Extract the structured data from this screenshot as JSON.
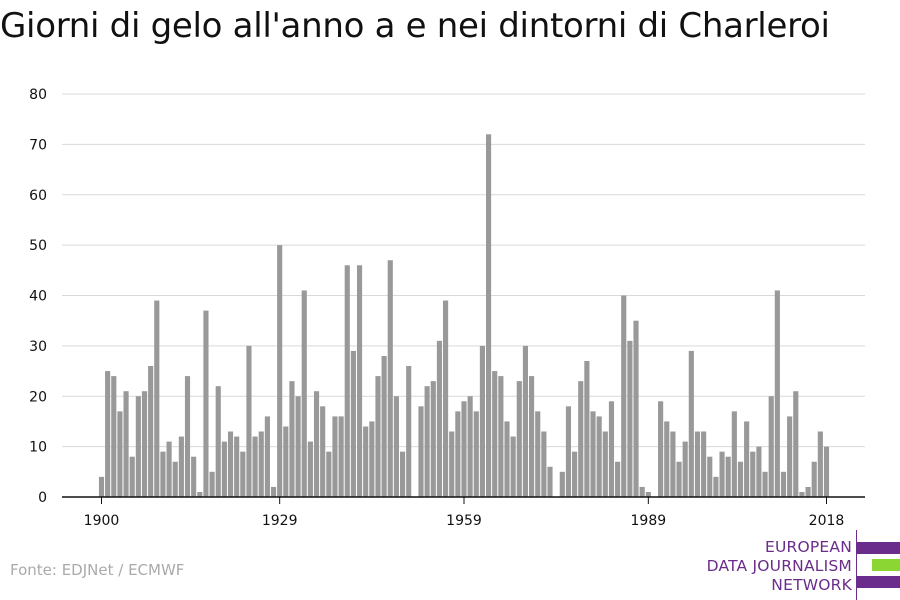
{
  "title": "Giorni di gelo all'anno a e nei dintorni di Charleroi",
  "source": "Fonte: EDJNet / ECMWF",
  "logo": {
    "lines": [
      "EUROPEAN",
      "DATA JOURNALISM",
      "NETWORK"
    ],
    "color_purple": "#6b2d8b",
    "color_green": "#8cd633"
  },
  "colors": {
    "bar": "#999999",
    "grid": "#d9d9d9",
    "axis": "#111111"
  },
  "chart_data": {
    "type": "bar",
    "title": "Giorni di gelo all'anno a e nei dintorni di Charleroi",
    "xlabel": "",
    "ylabel": "",
    "ylim": [
      0,
      80
    ],
    "yticks": [
      0,
      10,
      20,
      30,
      40,
      50,
      60,
      70,
      80
    ],
    "xticks": [
      1900,
      1929,
      1959,
      1989,
      2018
    ],
    "grid": true,
    "x": [
      1900,
      1901,
      1902,
      1903,
      1904,
      1905,
      1906,
      1907,
      1908,
      1909,
      1910,
      1911,
      1912,
      1913,
      1914,
      1915,
      1916,
      1917,
      1918,
      1919,
      1920,
      1921,
      1922,
      1923,
      1924,
      1925,
      1926,
      1927,
      1928,
      1929,
      1930,
      1931,
      1932,
      1933,
      1934,
      1935,
      1936,
      1937,
      1938,
      1939,
      1940,
      1941,
      1942,
      1943,
      1944,
      1945,
      1946,
      1947,
      1948,
      1949,
      1950,
      1951,
      1952,
      1953,
      1954,
      1955,
      1956,
      1957,
      1958,
      1959,
      1960,
      1961,
      1962,
      1963,
      1964,
      1965,
      1966,
      1967,
      1968,
      1969,
      1970,
      1971,
      1972,
      1973,
      1974,
      1975,
      1976,
      1977,
      1978,
      1979,
      1980,
      1981,
      1982,
      1983,
      1984,
      1985,
      1986,
      1987,
      1988,
      1989,
      1990,
      1991,
      1992,
      1993,
      1994,
      1995,
      1996,
      1997,
      1998,
      1999,
      2000,
      2001,
      2002,
      2003,
      2004,
      2005,
      2006,
      2007,
      2008,
      2009,
      2010,
      2011,
      2012,
      2013,
      2014,
      2015,
      2016,
      2017,
      2018
    ],
    "values": [
      4,
      25,
      24,
      17,
      21,
      8,
      20,
      21,
      26,
      39,
      9,
      11,
      7,
      12,
      24,
      8,
      1,
      37,
      5,
      22,
      11,
      13,
      12,
      9,
      30,
      12,
      13,
      16,
      2,
      50,
      14,
      23,
      20,
      41,
      11,
      21,
      18,
      9,
      16,
      16,
      46,
      29,
      46,
      14,
      15,
      24,
      28,
      47,
      20,
      9,
      26,
      0,
      18,
      22,
      23,
      31,
      39,
      13,
      17,
      19,
      20,
      17,
      30,
      72,
      25,
      24,
      15,
      12,
      23,
      30,
      24,
      17,
      13,
      6,
      0,
      5,
      18,
      9,
      23,
      27,
      17,
      16,
      13,
      19,
      7,
      40,
      31,
      35,
      2,
      1,
      0,
      19,
      15,
      13,
      7,
      11,
      29,
      13,
      13,
      8,
      4,
      9,
      8,
      17,
      7,
      15,
      9,
      10,
      5,
      20,
      41,
      5,
      16,
      21,
      1,
      2,
      7,
      13,
      10
    ]
  }
}
